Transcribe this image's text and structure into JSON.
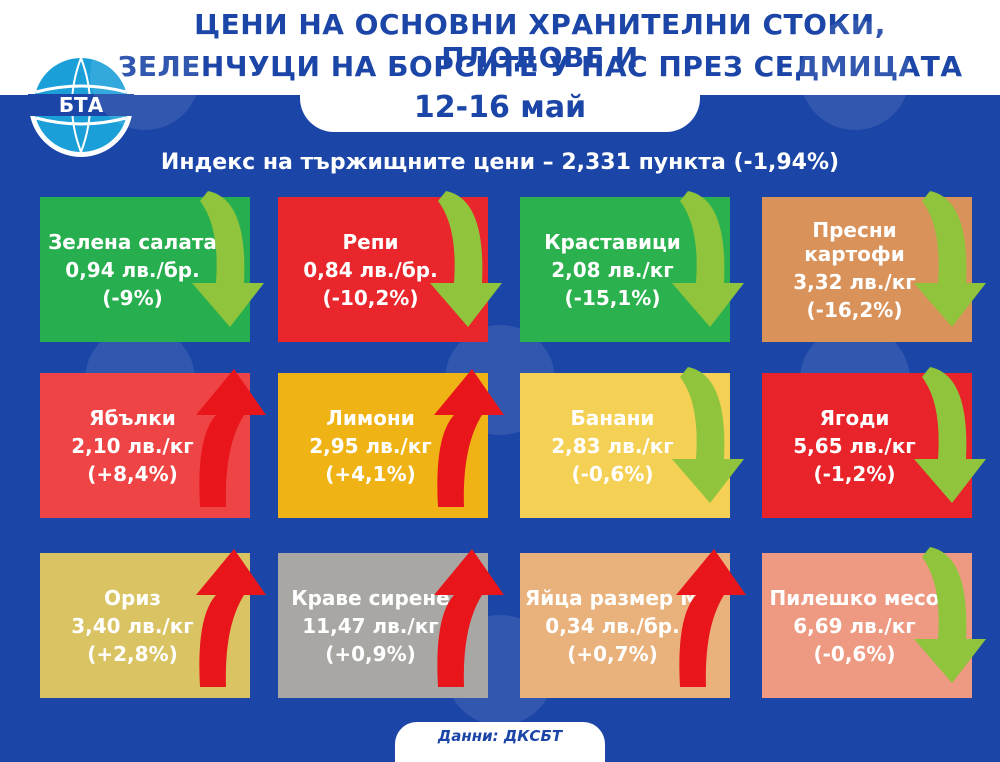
{
  "header": {
    "title_line1": "ЦЕНИ НА ОСНОВНИ ХРАНИТЕЛНИ СТОКИ, ПЛОДОВЕ И",
    "title_line2": "ЗЕЛЕНЧУЦИ НА БОРСИТЕ У НАС ПРЕЗ СЕДМИЦАТА",
    "dates": "12-16 май",
    "logo_text": "БТА"
  },
  "index_line": "Индекс на тържищните цени – 2,331 пункта (-1,94%)",
  "colors": {
    "background": "#1b45a6",
    "arrow_down": "#8fc43c",
    "arrow_up": "#e8161b"
  },
  "products": [
    {
      "name": "Зелена салата",
      "price": "0,94 лв./бр.",
      "change": "(-9%)",
      "direction": "down",
      "color": "#27ae4e"
    },
    {
      "name": "Репи",
      "price": "0,84 лв./бр.",
      "change": "(-10,2%)",
      "direction": "down",
      "color": "#e8262c"
    },
    {
      "name": "Краставици",
      "price": "2,08 лв./кг",
      "change": "(-15,1%)",
      "direction": "down",
      "color": "#2bb24e"
    },
    {
      "name": "Пресни картофи",
      "price": "3,32 лв./кг",
      "change": "(-16,2%)",
      "direction": "down",
      "color": "#d9925a"
    },
    {
      "name": "Ябълки",
      "price": "2,10 лв./кг",
      "change": "(+8,4%)",
      "direction": "up",
      "color": "#ee4445"
    },
    {
      "name": "Лимони",
      "price": "2,95 лв./кг",
      "change": "(+4,1%)",
      "direction": "up",
      "color": "#efb315"
    },
    {
      "name": "Банани",
      "price": "2,83 лв./кг",
      "change": "(-0,6%)",
      "direction": "down",
      "color": "#f4d055"
    },
    {
      "name": "Ягоди",
      "price": "5,65 лв./кг",
      "change": "(-1,2%)",
      "direction": "down",
      "color": "#e8242a"
    },
    {
      "name": "Ориз",
      "price": "3,40 лв./кг",
      "change": "(+2,8%)",
      "direction": "up",
      "color": "#d9c363"
    },
    {
      "name": "Краве сирене",
      "price": "11,47 лв./кг",
      "change": "(+0,9%)",
      "direction": "up",
      "color": "#a9a7a3"
    },
    {
      "name": "Яйца размер М",
      "price": "0,34 лв./бр.",
      "change": "(+0,7%)",
      "direction": "up",
      "color": "#e9b27c"
    },
    {
      "name": "Пилешко месо",
      "price": "6,69 лв./кг",
      "change": "(-0,6%)",
      "direction": "down",
      "color": "#ee9a82"
    }
  ],
  "footer": "Данни: ДКСБТ"
}
